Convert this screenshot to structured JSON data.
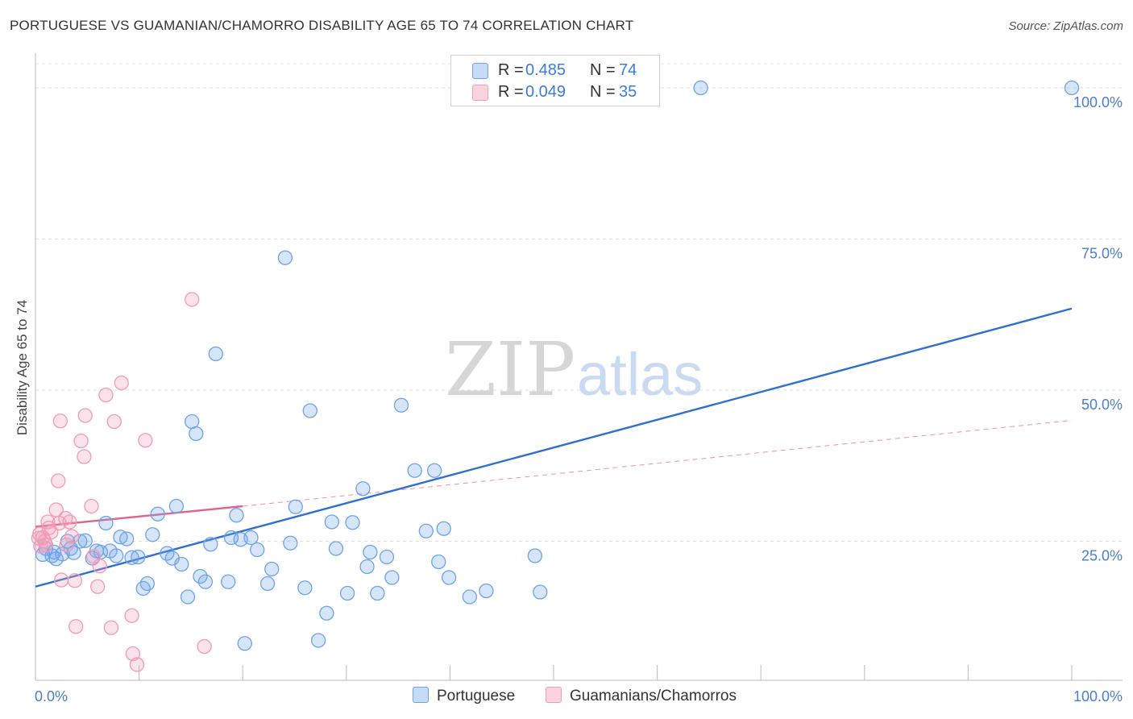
{
  "title": "PORTUGUESE VS GUAMANIAN/CHAMORRO DISABILITY AGE 65 TO 74 CORRELATION CHART",
  "source": "Source: ZipAtlas.com",
  "watermark": {
    "zip": "ZIP",
    "atlas": "atlas"
  },
  "legend": {
    "r_label": "R =",
    "n_label": "N =",
    "rows": [
      {
        "r": "0.485",
        "n": "74",
        "color": "#6fa3e8"
      },
      {
        "r": "0.049",
        "n": "35",
        "color": "#f29bb6"
      }
    ]
  },
  "bottom_legend": [
    {
      "label": "Portuguese",
      "color": "#6fa3e8"
    },
    {
      "label": "Guamanians/Chamorros",
      "color": "#f29bb6"
    }
  ],
  "chart_data": {
    "type": "scatter",
    "title": "PORTUGUESE VS GUAMANIAN/CHAMORRO DISABILITY AGE 65 TO 74 CORRELATION CHART",
    "xlabel": "",
    "ylabel": "Disability Age 65 to 74",
    "xlim": [
      0,
      100
    ],
    "ylim": [
      2,
      104
    ],
    "x_tick_labels": [
      "0.0%",
      "100.0%"
    ],
    "y_ticks": [
      25,
      50,
      75,
      100
    ],
    "y_tick_labels": [
      "25.0%",
      "50.0%",
      "75.0%",
      "100.0%"
    ],
    "grid": true,
    "series": [
      {
        "name": "Portuguese",
        "color": "#6fa3e8",
        "line_color": "#2f6fd0",
        "trend": {
          "x": [
            0,
            100
          ],
          "y": [
            17.5,
            63.5
          ]
        },
        "points": [
          [
            0.7,
            22.8
          ],
          [
            1.0,
            23.8
          ],
          [
            1.6,
            22.6
          ],
          [
            1.8,
            23.2
          ],
          [
            2.0,
            22.1
          ],
          [
            2.6,
            22.9
          ],
          [
            3.1,
            25.0
          ],
          [
            3.4,
            23.8
          ],
          [
            3.7,
            23.1
          ],
          [
            4.3,
            25.0
          ],
          [
            4.8,
            25.1
          ],
          [
            5.5,
            22.2
          ],
          [
            5.9,
            23.4
          ],
          [
            6.3,
            23.2
          ],
          [
            6.8,
            28.0
          ],
          [
            7.2,
            23.4
          ],
          [
            7.8,
            22.6
          ],
          [
            8.2,
            25.7
          ],
          [
            8.8,
            25.4
          ],
          [
            9.3,
            22.3
          ],
          [
            9.9,
            22.4
          ],
          [
            10.4,
            17.2
          ],
          [
            10.8,
            18.0
          ],
          [
            11.3,
            26.1
          ],
          [
            11.8,
            29.5
          ],
          [
            12.7,
            23.0
          ],
          [
            13.2,
            22.2
          ],
          [
            13.6,
            30.8
          ],
          [
            14.1,
            21.2
          ],
          [
            14.7,
            15.8
          ],
          [
            15.1,
            44.8
          ],
          [
            15.5,
            42.8
          ],
          [
            15.9,
            19.2
          ],
          [
            16.4,
            18.3
          ],
          [
            16.9,
            24.5
          ],
          [
            17.4,
            56.0
          ],
          [
            18.6,
            18.3
          ],
          [
            18.9,
            25.6
          ],
          [
            19.4,
            29.3
          ],
          [
            19.8,
            25.3
          ],
          [
            20.2,
            8.1
          ],
          [
            20.8,
            25.6
          ],
          [
            21.4,
            23.6
          ],
          [
            22.4,
            18.0
          ],
          [
            22.8,
            20.4
          ],
          [
            24.1,
            71.9
          ],
          [
            24.6,
            24.7
          ],
          [
            25.1,
            30.7
          ],
          [
            26.0,
            17.3
          ],
          [
            26.5,
            46.6
          ],
          [
            27.3,
            8.6
          ],
          [
            28.1,
            13.1
          ],
          [
            28.6,
            28.2
          ],
          [
            29.0,
            23.8
          ],
          [
            30.1,
            16.4
          ],
          [
            30.6,
            28.1
          ],
          [
            31.6,
            33.7
          ],
          [
            32.0,
            20.8
          ],
          [
            32.3,
            23.2
          ],
          [
            33.0,
            16.4
          ],
          [
            33.9,
            22.4
          ],
          [
            34.4,
            19.0
          ],
          [
            35.3,
            47.5
          ],
          [
            36.6,
            36.7
          ],
          [
            37.7,
            26.7
          ],
          [
            38.5,
            36.7
          ],
          [
            38.9,
            21.6
          ],
          [
            39.4,
            27.1
          ],
          [
            39.9,
            19.0
          ],
          [
            41.9,
            15.8
          ],
          [
            43.5,
            16.8
          ],
          [
            48.2,
            22.6
          ],
          [
            48.7,
            16.6
          ],
          [
            64.2,
            100.0
          ],
          [
            100.0,
            100.0
          ]
        ]
      },
      {
        "name": "Guamanians/Chamorros",
        "color": "#f29bb6",
        "line_color": "#e0638f",
        "trend": {
          "x": [
            0,
            20
          ],
          "y": [
            27.4,
            30.8
          ]
        },
        "trend_ext": {
          "x": [
            20,
            100
          ],
          "y": [
            30.8,
            45.0
          ]
        },
        "points": [
          [
            0.3,
            25.5
          ],
          [
            0.4,
            26.2
          ],
          [
            0.5,
            24.2
          ],
          [
            0.7,
            25.6
          ],
          [
            0.9,
            25.0
          ],
          [
            1.0,
            24.4
          ],
          [
            1.2,
            28.2
          ],
          [
            1.3,
            27.2
          ],
          [
            1.5,
            26.5
          ],
          [
            2.0,
            30.2
          ],
          [
            2.2,
            35.0
          ],
          [
            2.3,
            28.0
          ],
          [
            2.4,
            44.9
          ],
          [
            2.5,
            18.6
          ],
          [
            2.9,
            28.8
          ],
          [
            3.0,
            24.4
          ],
          [
            3.3,
            28.2
          ],
          [
            3.5,
            25.8
          ],
          [
            3.8,
            18.5
          ],
          [
            3.9,
            10.9
          ],
          [
            4.4,
            41.6
          ],
          [
            4.7,
            39.0
          ],
          [
            4.8,
            45.8
          ],
          [
            5.4,
            30.8
          ],
          [
            5.6,
            22.5
          ],
          [
            6.0,
            17.5
          ],
          [
            6.2,
            20.9
          ],
          [
            6.8,
            49.2
          ],
          [
            7.3,
            10.7
          ],
          [
            7.6,
            44.8
          ],
          [
            8.3,
            51.2
          ],
          [
            9.3,
            12.7
          ],
          [
            9.4,
            6.4
          ],
          [
            9.8,
            4.6
          ],
          [
            10.6,
            41.7
          ],
          [
            15.1,
            65.0
          ],
          [
            16.3,
            7.6
          ]
        ]
      }
    ]
  }
}
